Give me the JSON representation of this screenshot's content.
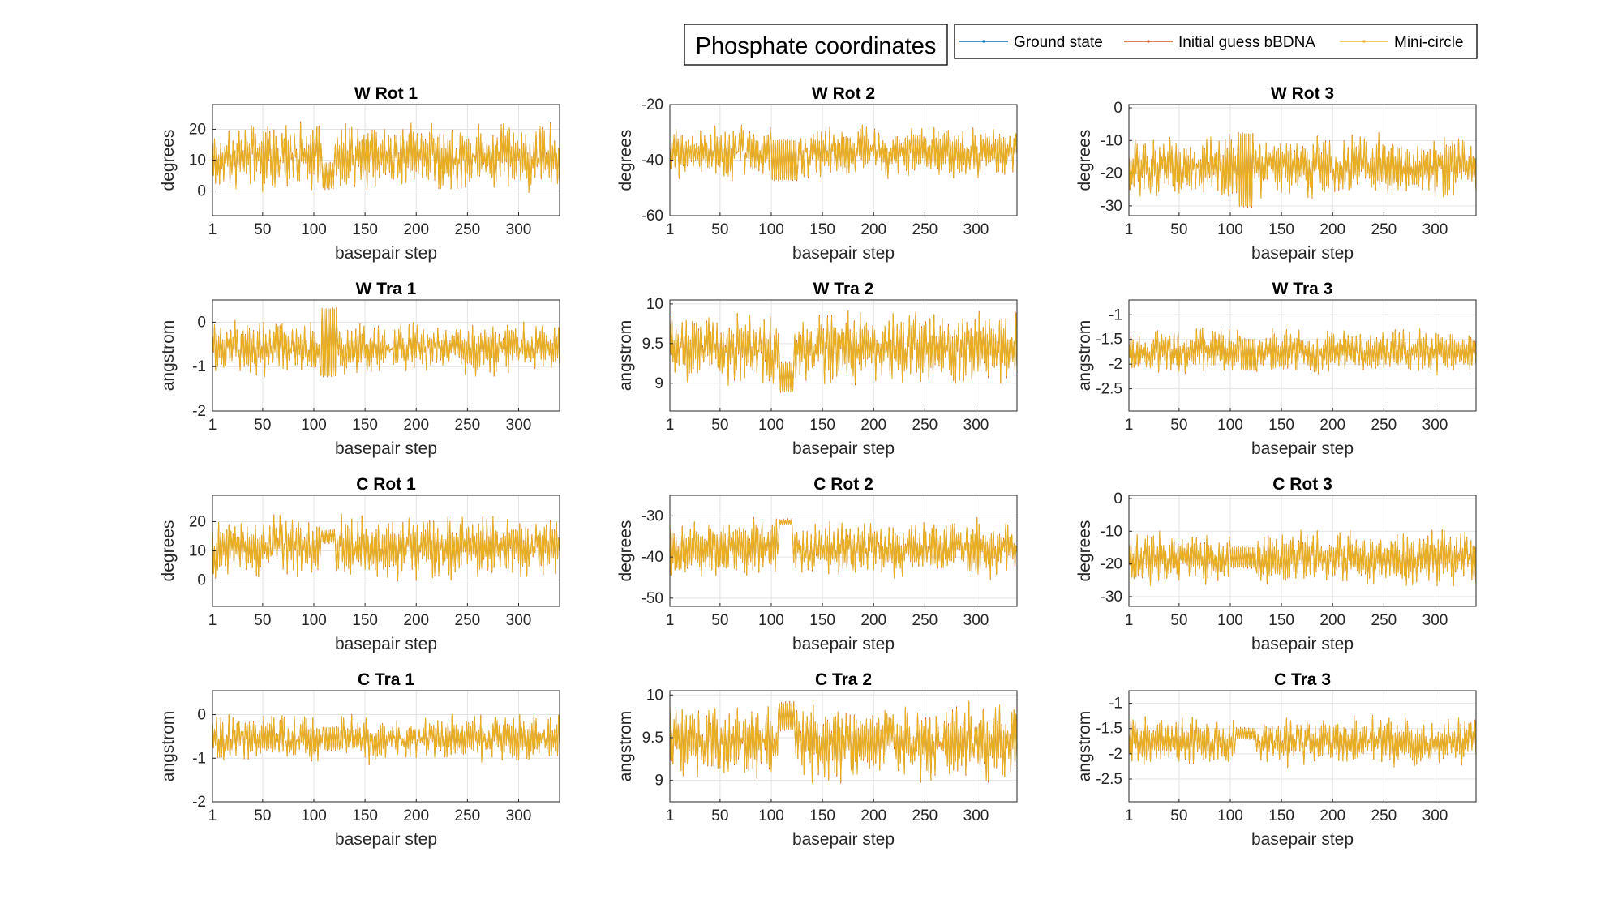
{
  "figure": {
    "title": "Phosphate coordinates",
    "legend": [
      {
        "name": "Ground state",
        "color": "#0072BD"
      },
      {
        "name": "Initial guess bBDNA",
        "color": "#D95319"
      },
      {
        "name": "Mini-circle",
        "color": "#EDB120"
      }
    ]
  },
  "chart_data": [
    {
      "type": "line",
      "title": "W Rot 1",
      "xlabel": "basepair step",
      "ylabel": "degrees",
      "xlim": [
        1,
        340
      ],
      "ylim": [
        -8,
        28
      ],
      "xticks": [
        1,
        50,
        100,
        150,
        200,
        250,
        300
      ],
      "yticks": [
        0,
        10,
        20
      ],
      "grid": true,
      "x_range": [
        1,
        340
      ],
      "baseline": 11,
      "amplitude": 9,
      "series": [
        "Ground state",
        "Initial guess bBDNA",
        "Mini-circle"
      ],
      "note_region": {
        "x": [
          109,
          120
        ],
        "y": [
          1,
          9
        ]
      }
    },
    {
      "type": "line",
      "title": "W Rot 2",
      "xlabel": "basepair step",
      "ylabel": "degrees",
      "xlim": [
        1,
        340
      ],
      "ylim": [
        -60,
        -20
      ],
      "xticks": [
        1,
        50,
        100,
        150,
        200,
        250,
        300
      ],
      "yticks": [
        -60,
        -40,
        -20
      ],
      "grid": true,
      "x_range": [
        1,
        340
      ],
      "baseline": -37,
      "amplitude": 8,
      "series": [
        "Ground state",
        "Initial guess bBDNA",
        "Mini-circle"
      ],
      "note_region": {
        "x": [
          100,
          125
        ],
        "y": [
          -47,
          -33
        ]
      }
    },
    {
      "type": "line",
      "title": "W Rot 3",
      "xlabel": "basepair step",
      "ylabel": "degrees",
      "xlim": [
        1,
        340
      ],
      "ylim": [
        -33,
        1
      ],
      "xticks": [
        1,
        50,
        100,
        150,
        200,
        250,
        300
      ],
      "yticks": [
        -30,
        -20,
        -10,
        0
      ],
      "grid": true,
      "x_range": [
        1,
        340
      ],
      "baseline": -18,
      "amplitude": 8,
      "series": [
        "Ground state",
        "Initial guess bBDNA",
        "Mini-circle"
      ],
      "note_region": {
        "x": [
          108,
          122
        ],
        "y": [
          -30,
          -8
        ]
      }
    },
    {
      "type": "line",
      "title": "W Tra 1",
      "xlabel": "basepair step",
      "ylabel": "angstrom",
      "xlim": [
        1,
        340
      ],
      "ylim": [
        -2,
        0.5
      ],
      "xticks": [
        1,
        50,
        100,
        150,
        200,
        250,
        300
      ],
      "yticks": [
        -2,
        -1,
        0
      ],
      "grid": true,
      "x_range": [
        1,
        340
      ],
      "baseline": -0.6,
      "amplitude": 0.5,
      "series": [
        "Ground state",
        "Initial guess bBDNA",
        "Mini-circle"
      ],
      "note_region": {
        "x": [
          107,
          122
        ],
        "y": [
          -1.2,
          0.3
        ]
      }
    },
    {
      "type": "line",
      "title": "W Tra 2",
      "xlabel": "basepair step",
      "ylabel": "angstrom",
      "xlim": [
        1,
        340
      ],
      "ylim": [
        8.65,
        10.05
      ],
      "xticks": [
        1,
        50,
        100,
        150,
        200,
        250,
        300
      ],
      "yticks": [
        9,
        9.5,
        10
      ],
      "grid": true,
      "x_range": [
        1,
        340
      ],
      "baseline": 9.45,
      "amplitude": 0.4,
      "series": [
        "Ground state",
        "Initial guess bBDNA",
        "Mini-circle"
      ],
      "note_region": {
        "x": [
          108,
          122
        ],
        "y": [
          8.9,
          9.25
        ]
      }
    },
    {
      "type": "line",
      "title": "W Tra 3",
      "xlabel": "basepair step",
      "ylabel": "angstrom",
      "xlim": [
        1,
        340
      ],
      "ylim": [
        -2.95,
        -0.7
      ],
      "xticks": [
        1,
        50,
        100,
        150,
        200,
        250,
        300
      ],
      "yticks": [
        -2.5,
        -2,
        -1.5,
        -1
      ],
      "grid": true,
      "x_range": [
        1,
        340
      ],
      "baseline": -1.75,
      "amplitude": 0.4,
      "series": [
        "Ground state",
        "Initial guess bBDNA",
        "Mini-circle"
      ],
      "note_region": {
        "x": [
          110,
          125
        ],
        "y": [
          -2.1,
          -1.5
        ]
      }
    },
    {
      "type": "line",
      "title": "C Rot 1",
      "xlabel": "basepair step",
      "ylabel": "degrees",
      "xlim": [
        1,
        340
      ],
      "ylim": [
        -9,
        29
      ],
      "xticks": [
        1,
        50,
        100,
        150,
        200,
        250,
        300
      ],
      "yticks": [
        0,
        10,
        20
      ],
      "grid": true,
      "x_range": [
        1,
        340
      ],
      "baseline": 11,
      "amplitude": 9,
      "series": [
        "Ground state",
        "Initial guess bBDNA",
        "Mini-circle"
      ],
      "note_region": {
        "x": [
          108,
          120
        ],
        "y": [
          13,
          17
        ]
      }
    },
    {
      "type": "line",
      "title": "C Rot 2",
      "xlabel": "basepair step",
      "ylabel": "degrees",
      "xlim": [
        1,
        340
      ],
      "ylim": [
        -52,
        -25
      ],
      "xticks": [
        1,
        50,
        100,
        150,
        200,
        250,
        300
      ],
      "yticks": [
        -50,
        -40,
        -30
      ],
      "grid": true,
      "x_range": [
        1,
        340
      ],
      "baseline": -38,
      "amplitude": 6,
      "series": [
        "Ground state",
        "Initial guess bBDNA",
        "Mini-circle"
      ],
      "note_region": {
        "x": [
          108,
          120
        ],
        "y": [
          -32,
          -31
        ]
      }
    },
    {
      "type": "line",
      "title": "C Rot 3",
      "xlabel": "basepair step",
      "ylabel": "degrees",
      "xlim": [
        1,
        340
      ],
      "ylim": [
        -33,
        1
      ],
      "xticks": [
        1,
        50,
        100,
        150,
        200,
        250,
        300
      ],
      "yticks": [
        -30,
        -20,
        -10,
        0
      ],
      "grid": true,
      "x_range": [
        1,
        340
      ],
      "baseline": -18,
      "amplitude": 7,
      "series": [
        "Ground state",
        "Initial guess bBDNA",
        "Mini-circle"
      ],
      "note_region": {
        "x": [
          100,
          125
        ],
        "y": [
          -21,
          -15
        ]
      }
    },
    {
      "type": "line",
      "title": "C Tra 1",
      "xlabel": "basepair step",
      "ylabel": "angstrom",
      "xlim": [
        1,
        340
      ],
      "ylim": [
        -2,
        0.55
      ],
      "xticks": [
        1,
        50,
        100,
        150,
        200,
        250,
        300
      ],
      "yticks": [
        -2,
        -1,
        0
      ],
      "grid": true,
      "x_range": [
        1,
        340
      ],
      "baseline": -0.55,
      "amplitude": 0.45,
      "series": [
        "Ground state",
        "Initial guess bBDNA",
        "Mini-circle"
      ],
      "note_region": {
        "x": [
          110,
          125
        ],
        "y": [
          -0.8,
          -0.3
        ]
      }
    },
    {
      "type": "line",
      "title": "C Tra 2",
      "xlabel": "basepair step",
      "ylabel": "angstrom",
      "xlim": [
        1,
        340
      ],
      "ylim": [
        8.75,
        10.05
      ],
      "xticks": [
        1,
        50,
        100,
        150,
        200,
        250,
        300
      ],
      "yticks": [
        9,
        9.5,
        10
      ],
      "grid": true,
      "x_range": [
        1,
        340
      ],
      "baseline": 9.45,
      "amplitude": 0.4,
      "series": [
        "Ground state",
        "Initial guess bBDNA",
        "Mini-circle"
      ],
      "note_region": {
        "x": [
          108,
          122
        ],
        "y": [
          9.6,
          9.9
        ]
      }
    },
    {
      "type": "line",
      "title": "C Tra 3",
      "xlabel": "basepair step",
      "ylabel": "angstrom",
      "xlim": [
        1,
        340
      ],
      "ylim": [
        -2.95,
        -0.75
      ],
      "xticks": [
        1,
        50,
        100,
        150,
        200,
        250,
        300
      ],
      "yticks": [
        -2.5,
        -2,
        -1.5,
        -1
      ],
      "grid": true,
      "x_range": [
        1,
        340
      ],
      "baseline": -1.75,
      "amplitude": 0.4,
      "series": [
        "Ground state",
        "Initial guess bBDNA",
        "Mini-circle"
      ],
      "note_region": {
        "x": [
          105,
          125
        ],
        "y": [
          -1.7,
          -1.5
        ]
      }
    }
  ]
}
